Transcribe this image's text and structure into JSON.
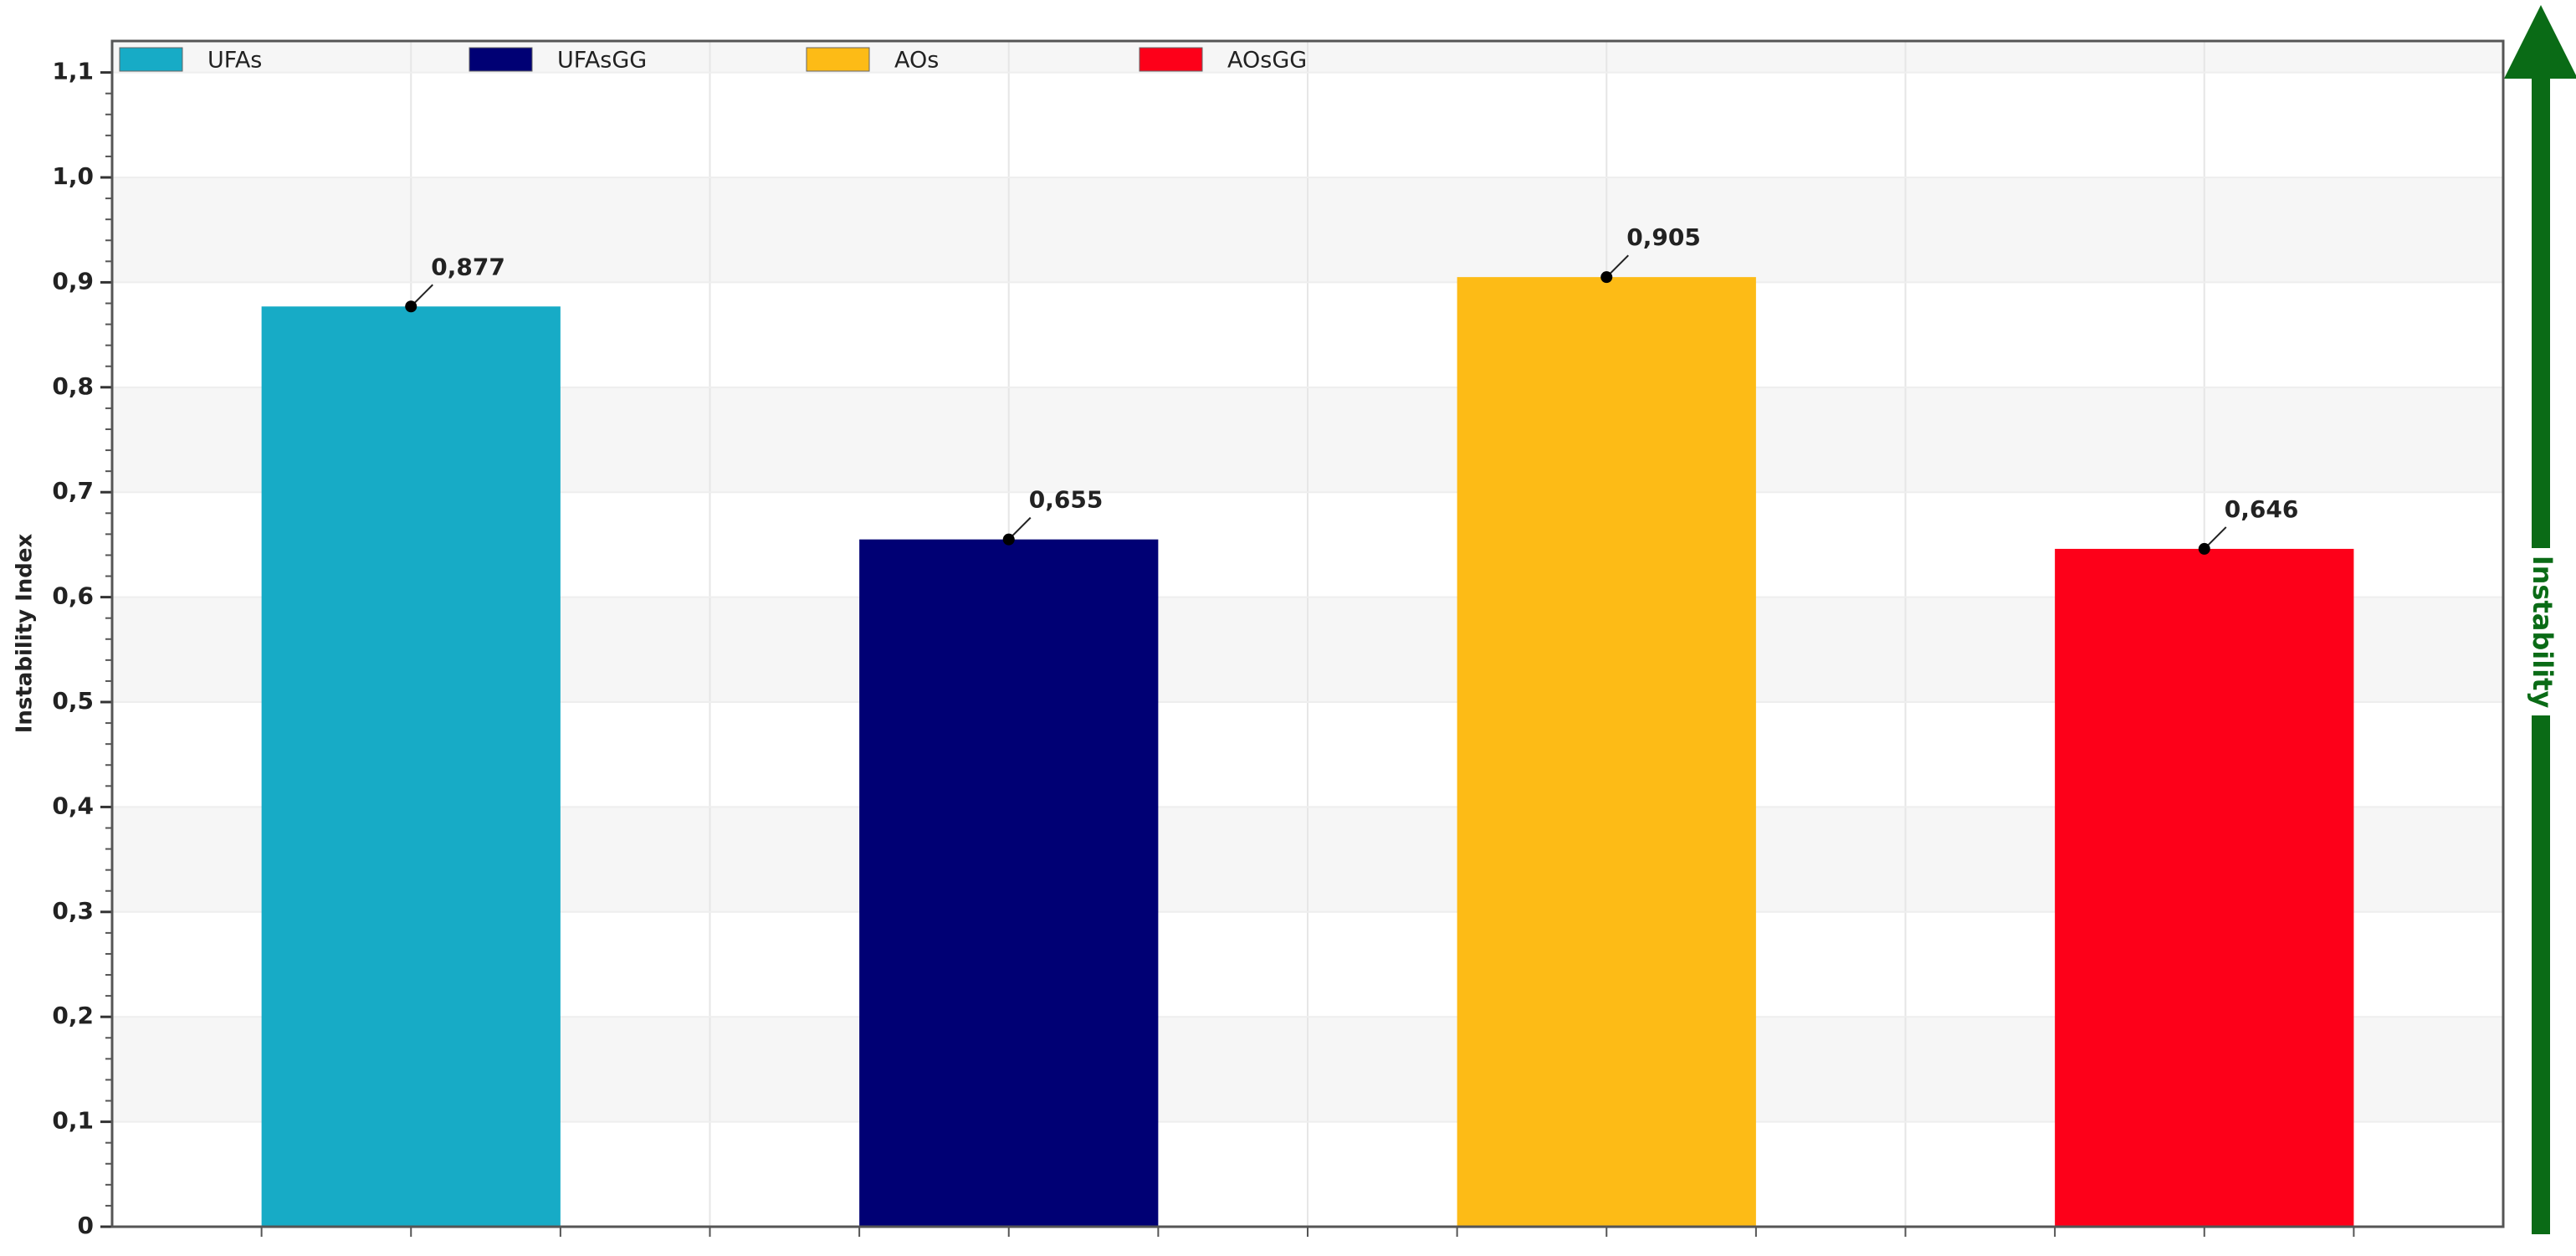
{
  "chart_data": {
    "type": "bar",
    "y_label": "Instability Index",
    "annotation": "Instability",
    "categories": [
      null,
      null,
      null,
      null
    ],
    "series": [
      {
        "name": "UFAs",
        "color": "#17abc6",
        "values": [
          0.877,
          null,
          null,
          null
        ],
        "value_labels": [
          "0,877",
          null,
          null,
          null
        ]
      },
      {
        "name": "UFAsGG",
        "color": "#000074",
        "values": [
          null,
          0.655,
          null,
          null
        ],
        "value_labels": [
          null,
          "0,655",
          null,
          null
        ]
      },
      {
        "name": "AOs",
        "color": "#fdbb16",
        "values": [
          null,
          null,
          0.905,
          null
        ],
        "value_labels": [
          null,
          null,
          "0,905",
          null
        ]
      },
      {
        "name": "AOsGG",
        "color": "#fd0019",
        "values": [
          null,
          null,
          null,
          0.646
        ],
        "value_labels": [
          null,
          null,
          null,
          "0,646"
        ]
      }
    ],
    "ylim": [
      0,
      1.13
    ],
    "yticks": [
      0,
      {
        "value": 0.1,
        "label": "0,1"
      },
      {
        "value": 0.2,
        "label": "0,2"
      },
      {
        "value": 0.3,
        "label": "0,3"
      },
      {
        "value": 0.4,
        "label": "0,4"
      },
      {
        "value": 0.5,
        "label": "0,5"
      },
      {
        "value": 0.6,
        "label": "0,6"
      },
      {
        "value": 0.7,
        "label": "0,7"
      },
      {
        "value": 0.8,
        "label": "0,8"
      },
      {
        "value": 0.9,
        "label": "0,9"
      },
      {
        "value": 1.0,
        "label": "1,0"
      },
      {
        "value": 1.1,
        "label": "1,1"
      }
    ],
    "grid": true,
    "legend": "top"
  }
}
